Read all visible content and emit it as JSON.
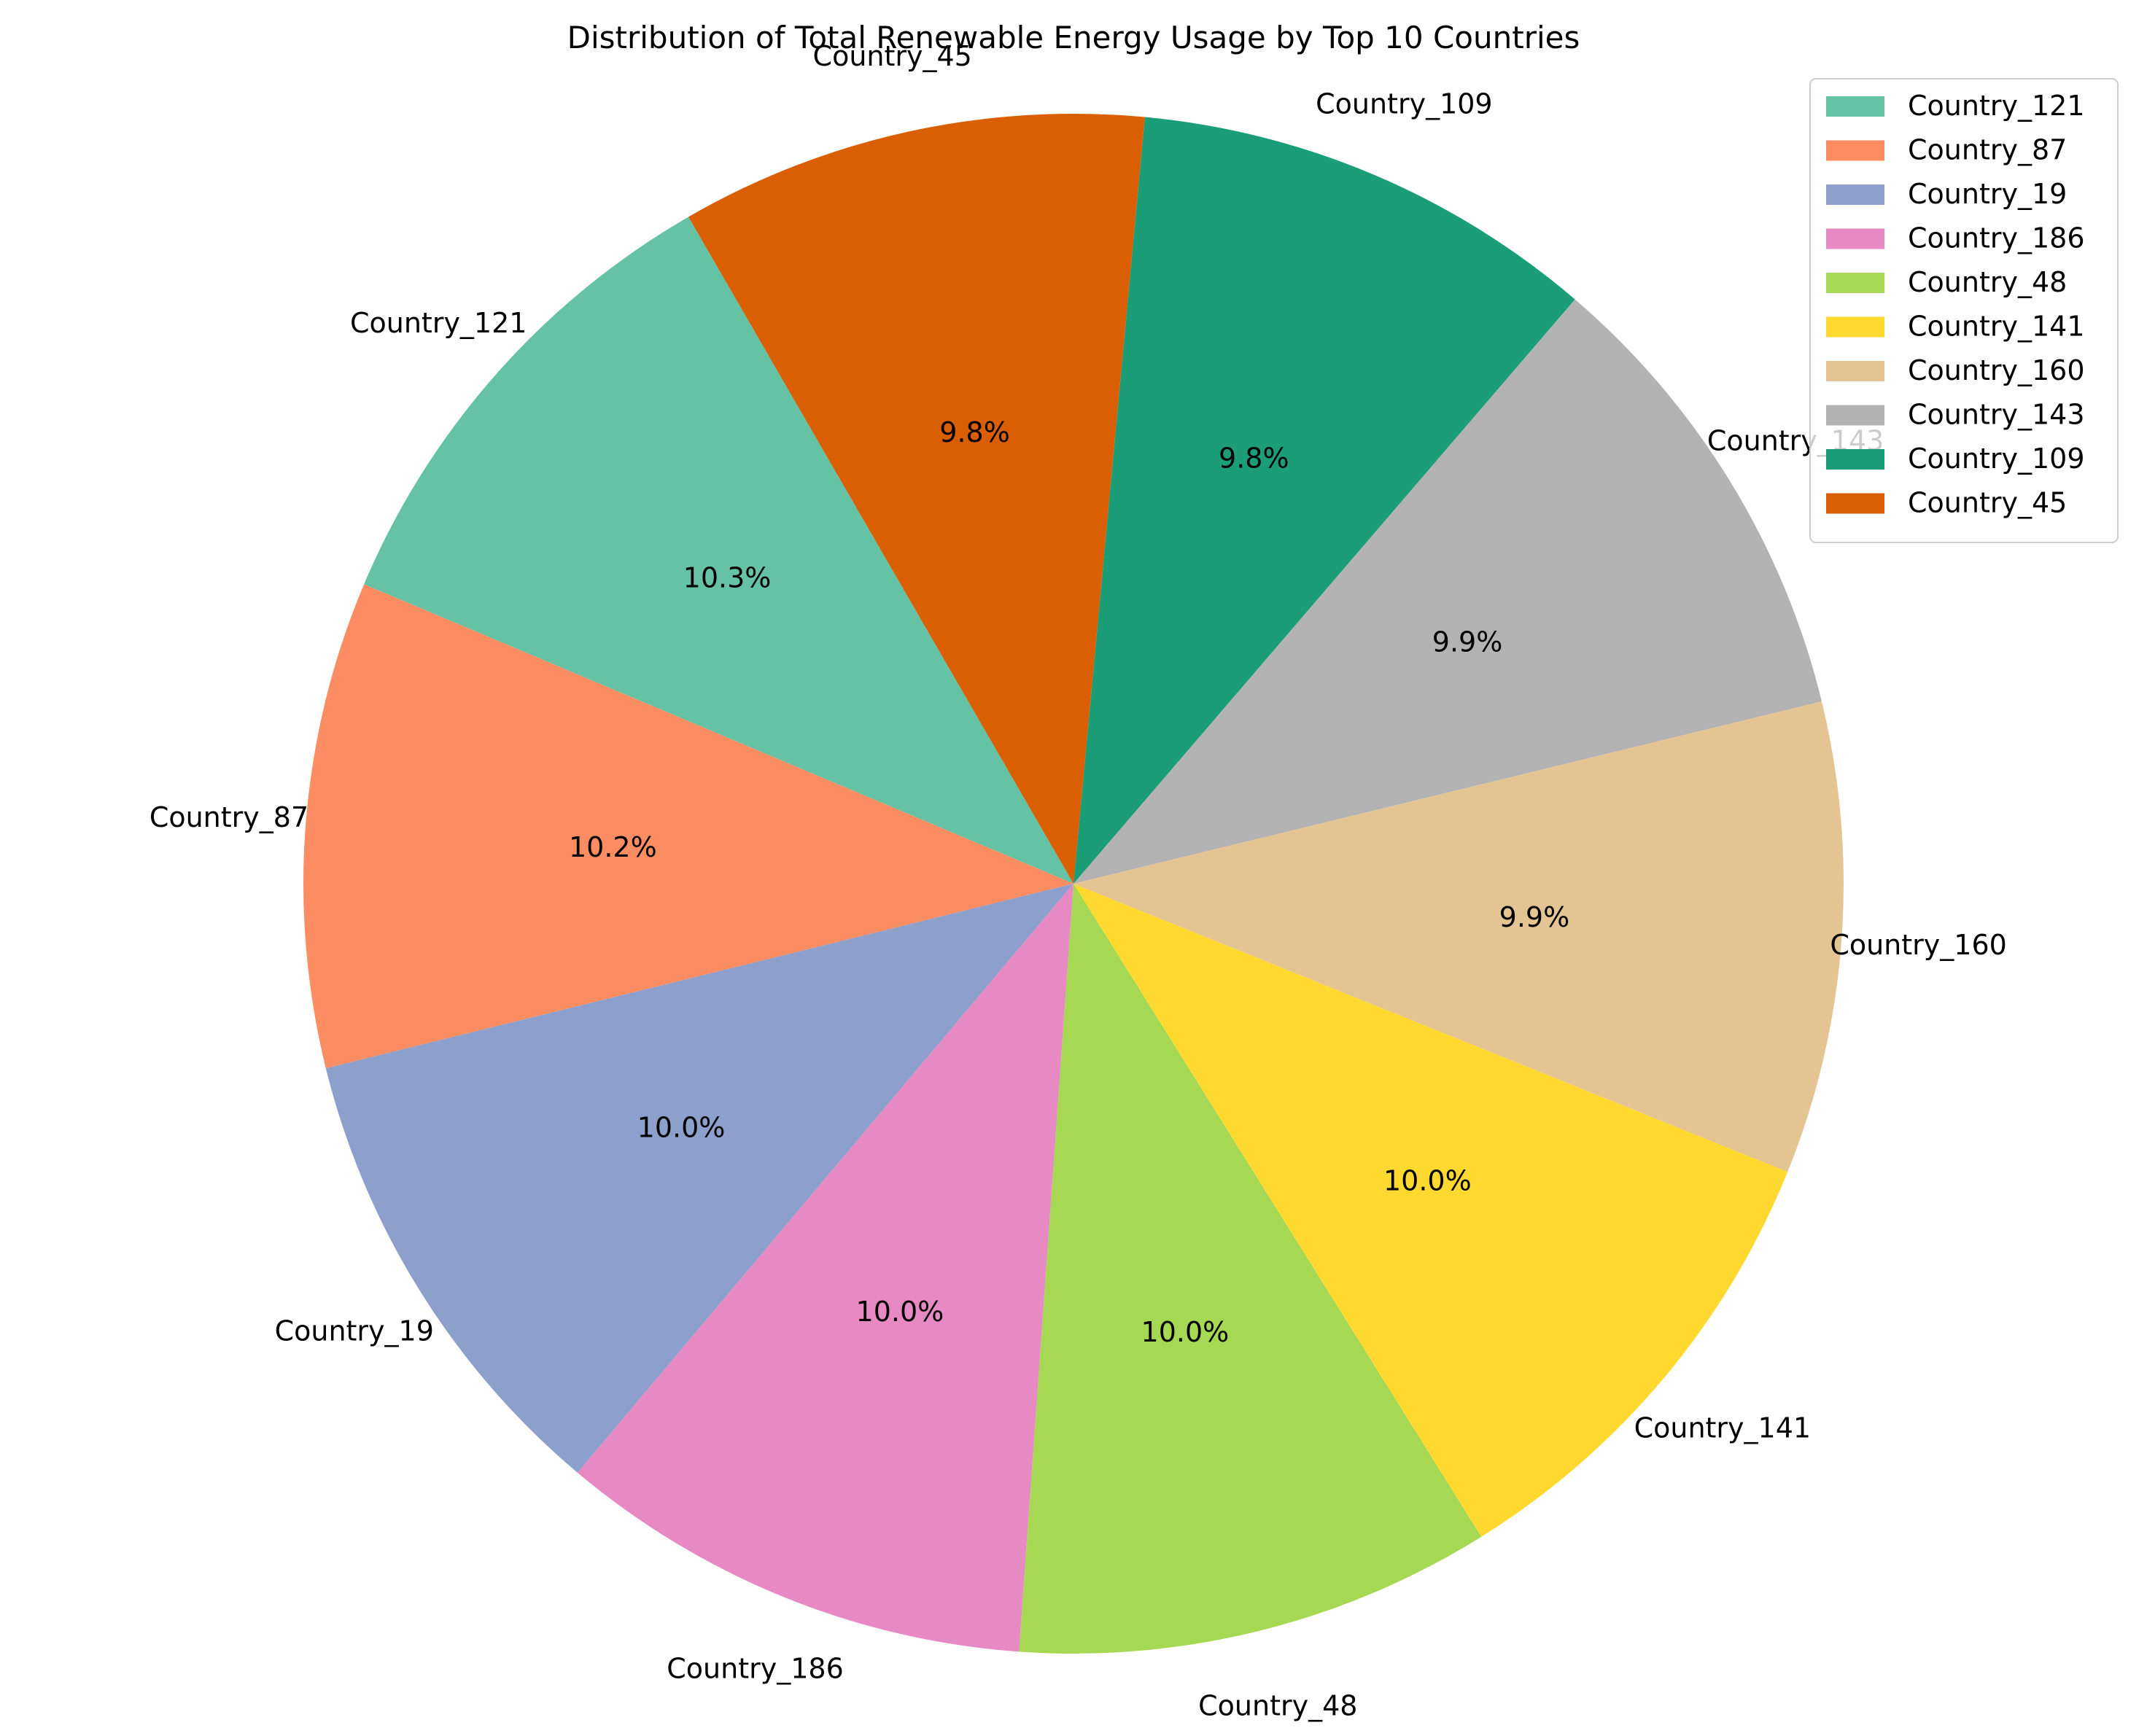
{
  "chart_data": {
    "type": "pie",
    "title": "Distribution of Total Renewable Energy Usage by Top 10 Countries",
    "start_angle_deg": 120,
    "direction": "counterclockwise",
    "legend_position": "top-right",
    "slices": [
      {
        "label": "Country_121",
        "percent": 10.3,
        "pct_text": "10.3%",
        "color": "#66c2a5"
      },
      {
        "label": "Country_87",
        "percent": 10.2,
        "pct_text": "10.2%",
        "color": "#fc8d62"
      },
      {
        "label": "Country_19",
        "percent": 10.0,
        "pct_text": "10.0%",
        "color": "#8da0cb"
      },
      {
        "label": "Country_186",
        "percent": 10.0,
        "pct_text": "10.0%",
        "color": "#e78ac3"
      },
      {
        "label": "Country_48",
        "percent": 10.0,
        "pct_text": "10.0%",
        "color": "#a6d854"
      },
      {
        "label": "Country_141",
        "percent": 10.0,
        "pct_text": "10.0%",
        "color": "#ffd92f"
      },
      {
        "label": "Country_160",
        "percent": 9.9,
        "pct_text": "9.9%",
        "color": "#e5c494"
      },
      {
        "label": "Country_143",
        "percent": 9.9,
        "pct_text": "9.9%",
        "color": "#b3b3b3"
      },
      {
        "label": "Country_109",
        "percent": 9.8,
        "pct_text": "9.8%",
        "color": "#1b9e77"
      },
      {
        "label": "Country_45",
        "percent": 9.8,
        "pct_text": "9.8%",
        "color": "#d95f02"
      }
    ]
  }
}
